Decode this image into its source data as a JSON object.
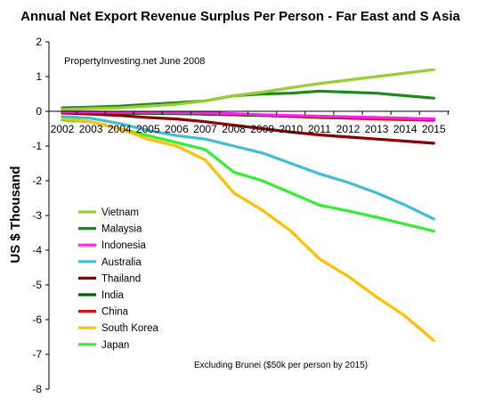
{
  "chart_data": {
    "type": "line",
    "title": "Annual Net Export Revenue Surplus Per Person -  Far East and S Asia",
    "ylabel": "US $ Thousand",
    "xlabel": "",
    "source_note": "PropertyInvesting.net    June 2008",
    "footnote": "Excluding Brunei ($50k per person by 2015)",
    "x": [
      2002,
      2003,
      2004,
      2005,
      2006,
      2007,
      2008,
      2009,
      2010,
      2011,
      2012,
      2013,
      2014,
      2015
    ],
    "x_tick_labels": [
      "2002",
      "2003",
      "2004",
      "2005",
      "2006",
      "2007",
      "2008",
      "2009",
      "2010",
      "2011",
      "2012",
      "2013",
      "2014",
      "2015"
    ],
    "y_tick_labels": [
      "2",
      "1",
      "0",
      "-1",
      "-2",
      "-3",
      "-4",
      "-5",
      "-6",
      "-7",
      "-8"
    ],
    "ylim": [
      -8,
      2
    ],
    "y_ticks": [
      2,
      1,
      0,
      -1,
      -2,
      -3,
      -4,
      -5,
      -6,
      -7,
      -8
    ],
    "grid": false,
    "legend_position": "left-middle",
    "series": [
      {
        "name": "Vietnam",
        "color": "#9acd32",
        "values": [
          0.05,
          0.08,
          0.1,
          0.15,
          0.2,
          0.3,
          0.45,
          0.55,
          0.68,
          0.8,
          0.9,
          1.0,
          1.1,
          1.2
        ]
      },
      {
        "name": "Malaysia",
        "color": "#1a8a1a",
        "values": [
          0.1,
          0.12,
          0.15,
          0.2,
          0.25,
          0.3,
          0.45,
          0.5,
          0.52,
          0.58,
          0.55,
          0.52,
          0.45,
          0.38
        ]
      },
      {
        "name": "Indonesia",
        "color": "#ff22ee",
        "values": [
          -0.02,
          -0.02,
          -0.03,
          -0.03,
          -0.04,
          -0.05,
          -0.07,
          -0.1,
          -0.12,
          -0.14,
          -0.16,
          -0.18,
          -0.2,
          -0.22
        ]
      },
      {
        "name": "Australia",
        "color": "#40c0cc",
        "values": [
          -0.15,
          -0.2,
          -0.35,
          -0.55,
          -0.7,
          -0.8,
          -1.0,
          -1.2,
          -1.5,
          -1.8,
          -2.05,
          -2.35,
          -2.7,
          -3.1
        ]
      },
      {
        "name": "Thailand",
        "color": "#8b0000",
        "values": [
          -0.05,
          -0.08,
          -0.12,
          -0.18,
          -0.22,
          -0.3,
          -0.4,
          -0.5,
          -0.6,
          -0.68,
          -0.74,
          -0.8,
          -0.86,
          -0.92
        ]
      },
      {
        "name": "India",
        "color": "#006400",
        "values": [
          -0.05,
          -0.05,
          -0.06,
          -0.06,
          -0.07,
          -0.08,
          -0.1,
          -0.12,
          -0.14,
          -0.15,
          -0.17,
          -0.18,
          -0.2,
          -0.22
        ]
      },
      {
        "name": "China",
        "color": "#dd1111",
        "values": [
          -0.02,
          -0.03,
          -0.04,
          -0.05,
          -0.06,
          -0.08,
          -0.1,
          -0.12,
          -0.15,
          -0.18,
          -0.2,
          -0.22,
          -0.24,
          -0.26
        ]
      },
      {
        "name": "South Korea",
        "color": "#ffc000",
        "values": [
          -0.2,
          -0.3,
          -0.5,
          -0.8,
          -1.0,
          -1.4,
          -2.35,
          -2.85,
          -3.45,
          -4.25,
          -4.75,
          -5.35,
          -5.9,
          -6.6
        ]
      },
      {
        "name": "Japan",
        "color": "#33ee33",
        "values": [
          -0.25,
          -0.3,
          -0.5,
          -0.7,
          -0.9,
          -1.1,
          -1.75,
          -2.0,
          -2.35,
          -2.7,
          -2.87,
          -3.05,
          -3.25,
          -3.45
        ]
      }
    ]
  }
}
